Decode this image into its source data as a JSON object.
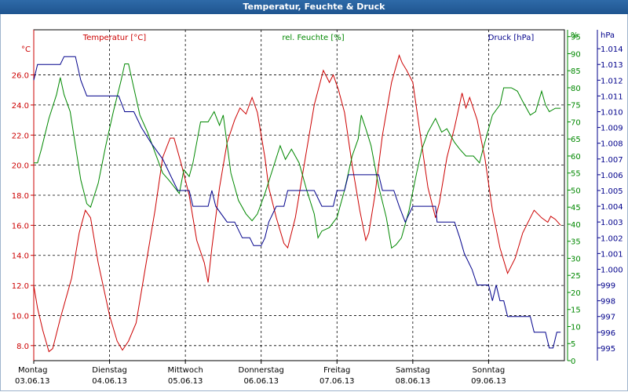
{
  "window": {
    "title": "Temperatur, Feuchte & Druck"
  },
  "chart_data": {
    "type": "line",
    "title": "Temperatur, Feuchte & Druck",
    "x_range": [
      0,
      7
    ],
    "grid": true,
    "axes": {
      "temperature": {
        "unit": "°C",
        "label": "Temperatur [°C]",
        "range": [
          7,
          29
        ],
        "ticks": [
          8,
          10,
          12,
          14,
          16,
          18,
          20,
          22,
          24,
          26
        ],
        "tick_labels": [
          "8.0",
          "10.0",
          "12.0",
          "14.0",
          "16.0",
          "18.0",
          "20.0",
          "22.0",
          "24.0",
          "26.0"
        ],
        "color": "#cc0000"
      },
      "humidity": {
        "unit": "%",
        "label": "rel. Feuchte [%]",
        "range": [
          0,
          97
        ],
        "ticks": [
          0,
          5,
          10,
          15,
          20,
          25,
          30,
          35,
          40,
          45,
          50,
          55,
          60,
          65,
          70,
          75,
          80,
          85,
          90,
          95
        ],
        "tick_labels": [
          "0",
          "5",
          "10",
          "15",
          "20",
          "25",
          "30",
          "35",
          "40",
          "45",
          "50",
          "55",
          "60",
          "65",
          "70",
          "75",
          "80",
          "85",
          "90",
          "95"
        ],
        "color": "#008800"
      },
      "pressure": {
        "unit": "hPa",
        "label": "Druck [hPa]",
        "range": [
          994.2,
          1015.2
        ],
        "ticks": [
          995,
          996,
          997,
          998,
          999,
          1000,
          1001,
          1002,
          1003,
          1004,
          1005,
          1006,
          1007,
          1008,
          1009,
          1010,
          1011,
          1012,
          1013,
          1014
        ],
        "tick_labels": [
          "995",
          "996",
          "997",
          "998",
          "999",
          "1.000",
          "1.001",
          "1.002",
          "1.003",
          "1.004",
          "1.005",
          "1.006",
          "1.007",
          "1.008",
          "1.009",
          "1.010",
          "1.011",
          "1.012",
          "1.013",
          "1.014"
        ],
        "color": "#00008b"
      }
    },
    "days": [
      {
        "name": "Montag",
        "date": "03.06.13"
      },
      {
        "name": "Dienstag",
        "date": "04.06.13"
      },
      {
        "name": "Mittwoch",
        "date": "05.06.13"
      },
      {
        "name": "Donnerstag",
        "date": "06.06.13"
      },
      {
        "name": "Freitag",
        "date": "07.06.13"
      },
      {
        "name": "Samstag",
        "date": "08.06.13"
      },
      {
        "name": "Sonntag",
        "date": "09.06.13"
      }
    ],
    "series": [
      {
        "name": "Temperatur",
        "axis": "temperature",
        "color": "#cc0000",
        "points": [
          [
            0,
            12
          ],
          [
            0.05,
            10.5
          ],
          [
            0.12,
            9
          ],
          [
            0.2,
            7.6
          ],
          [
            0.25,
            7.8
          ],
          [
            0.35,
            9.8
          ],
          [
            0.5,
            12.5
          ],
          [
            0.6,
            15.5
          ],
          [
            0.68,
            17
          ],
          [
            0.75,
            16.5
          ],
          [
            0.85,
            13.5
          ],
          [
            1,
            10
          ],
          [
            1.1,
            8.3
          ],
          [
            1.17,
            7.7
          ],
          [
            1.25,
            8.3
          ],
          [
            1.35,
            9.5
          ],
          [
            1.45,
            12.5
          ],
          [
            1.6,
            17
          ],
          [
            1.7,
            20.5
          ],
          [
            1.8,
            21.8
          ],
          [
            1.85,
            21.8
          ],
          [
            1.95,
            20
          ],
          [
            2.05,
            18
          ],
          [
            2.15,
            15
          ],
          [
            2.25,
            13.5
          ],
          [
            2.3,
            12.2
          ],
          [
            2.35,
            14.5
          ],
          [
            2.45,
            18.5
          ],
          [
            2.55,
            21.5
          ],
          [
            2.65,
            23
          ],
          [
            2.72,
            23.8
          ],
          [
            2.8,
            23.4
          ],
          [
            2.88,
            24.5
          ],
          [
            2.95,
            23.5
          ],
          [
            3.05,
            20.5
          ],
          [
            3.1,
            18.5
          ],
          [
            3.2,
            16.5
          ],
          [
            3.3,
            14.8
          ],
          [
            3.35,
            14.5
          ],
          [
            3.45,
            16.5
          ],
          [
            3.55,
            19.5
          ],
          [
            3.7,
            24
          ],
          [
            3.82,
            26.3
          ],
          [
            3.9,
            25.5
          ],
          [
            3.95,
            26
          ],
          [
            4.02,
            25
          ],
          [
            4.1,
            23.5
          ],
          [
            4.2,
            20
          ],
          [
            4.3,
            17
          ],
          [
            4.38,
            15
          ],
          [
            4.42,
            15.5
          ],
          [
            4.5,
            18
          ],
          [
            4.6,
            22
          ],
          [
            4.72,
            25.5
          ],
          [
            4.82,
            27.3
          ],
          [
            4.86,
            26.8
          ],
          [
            4.92,
            26.3
          ],
          [
            5,
            25.5
          ],
          [
            5.1,
            22
          ],
          [
            5.2,
            18.5
          ],
          [
            5.3,
            16.5
          ],
          [
            5.35,
            17.5
          ],
          [
            5.45,
            20.5
          ],
          [
            5.55,
            22.5
          ],
          [
            5.65,
            24.8
          ],
          [
            5.7,
            23.8
          ],
          [
            5.75,
            24.5
          ],
          [
            5.85,
            23
          ],
          [
            5.95,
            20.5
          ],
          [
            6.05,
            17
          ],
          [
            6.15,
            14.5
          ],
          [
            6.25,
            12.8
          ],
          [
            6.35,
            13.8
          ],
          [
            6.45,
            15.5
          ],
          [
            6.55,
            16.5
          ],
          [
            6.6,
            17
          ],
          [
            6.7,
            16.5
          ],
          [
            6.78,
            16.2
          ],
          [
            6.82,
            16.6
          ],
          [
            6.88,
            16.4
          ],
          [
            6.95,
            16
          ]
        ]
      },
      {
        "name": "rel. Feuchte",
        "axis": "humidity",
        "color": "#008800",
        "points": [
          [
            0,
            58
          ],
          [
            0.05,
            58
          ],
          [
            0.1,
            62
          ],
          [
            0.2,
            71
          ],
          [
            0.3,
            78
          ],
          [
            0.35,
            83
          ],
          [
            0.4,
            78
          ],
          [
            0.48,
            73
          ],
          [
            0.55,
            63
          ],
          [
            0.62,
            53
          ],
          [
            0.7,
            46
          ],
          [
            0.75,
            45
          ],
          [
            0.85,
            52
          ],
          [
            0.95,
            63
          ],
          [
            1.05,
            73
          ],
          [
            1.15,
            82
          ],
          [
            1.2,
            87
          ],
          [
            1.25,
            87
          ],
          [
            1.3,
            82
          ],
          [
            1.4,
            72
          ],
          [
            1.5,
            67
          ],
          [
            1.6,
            61
          ],
          [
            1.7,
            55
          ],
          [
            1.78,
            53
          ],
          [
            1.85,
            51
          ],
          [
            1.92,
            49
          ],
          [
            1.98,
            56
          ],
          [
            2.05,
            54
          ],
          [
            2.1,
            58
          ],
          [
            2.2,
            70
          ],
          [
            2.3,
            70
          ],
          [
            2.38,
            73
          ],
          [
            2.45,
            69
          ],
          [
            2.5,
            72
          ],
          [
            2.6,
            55
          ],
          [
            2.7,
            47
          ],
          [
            2.8,
            43
          ],
          [
            2.88,
            41
          ],
          [
            2.95,
            43
          ],
          [
            3.05,
            49
          ],
          [
            3.15,
            56
          ],
          [
            3.25,
            63
          ],
          [
            3.32,
            59
          ],
          [
            3.4,
            62
          ],
          [
            3.5,
            58
          ],
          [
            3.6,
            50
          ],
          [
            3.7,
            43
          ],
          [
            3.75,
            36
          ],
          [
            3.8,
            38
          ],
          [
            3.9,
            39
          ],
          [
            4,
            42
          ],
          [
            4.1,
            50
          ],
          [
            4.2,
            60
          ],
          [
            4.28,
            65
          ],
          [
            4.32,
            72
          ],
          [
            4.38,
            68
          ],
          [
            4.45,
            63
          ],
          [
            4.55,
            51
          ],
          [
            4.65,
            42
          ],
          [
            4.72,
            33
          ],
          [
            4.78,
            34
          ],
          [
            4.85,
            36
          ],
          [
            4.95,
            44
          ],
          [
            5.05,
            55
          ],
          [
            5.12,
            62
          ],
          [
            5.2,
            67
          ],
          [
            5.3,
            71
          ],
          [
            5.38,
            67
          ],
          [
            5.45,
            68
          ],
          [
            5.55,
            64
          ],
          [
            5.62,
            62
          ],
          [
            5.7,
            60
          ],
          [
            5.8,
            60
          ],
          [
            5.88,
            58
          ],
          [
            5.95,
            64
          ],
          [
            6.05,
            72
          ],
          [
            6.15,
            75
          ],
          [
            6.2,
            80
          ],
          [
            6.3,
            80
          ],
          [
            6.38,
            79
          ],
          [
            6.45,
            76
          ],
          [
            6.55,
            72
          ],
          [
            6.62,
            73
          ],
          [
            6.7,
            79
          ],
          [
            6.75,
            75
          ],
          [
            6.8,
            73
          ],
          [
            6.88,
            74
          ],
          [
            6.95,
            74
          ]
        ]
      },
      {
        "name": "Druck",
        "axis": "pressure",
        "color": "#00008b",
        "points": [
          [
            0,
            1012
          ],
          [
            0.05,
            1013
          ],
          [
            0.35,
            1013
          ],
          [
            0.4,
            1013.5
          ],
          [
            0.55,
            1013.5
          ],
          [
            0.62,
            1012
          ],
          [
            0.7,
            1011
          ],
          [
            1.12,
            1011
          ],
          [
            1.2,
            1010
          ],
          [
            1.32,
            1010
          ],
          [
            1.42,
            1009
          ],
          [
            1.55,
            1008
          ],
          [
            1.7,
            1007
          ],
          [
            1.8,
            1006
          ],
          [
            1.9,
            1005
          ],
          [
            2.05,
            1005
          ],
          [
            2.1,
            1004
          ],
          [
            2.3,
            1004
          ],
          [
            2.35,
            1005
          ],
          [
            2.4,
            1004
          ],
          [
            2.55,
            1003
          ],
          [
            2.65,
            1003
          ],
          [
            2.75,
            1002
          ],
          [
            2.85,
            1002
          ],
          [
            2.9,
            1001.5
          ],
          [
            3,
            1001.5
          ],
          [
            3.05,
            1002
          ],
          [
            3.1,
            1003
          ],
          [
            3.2,
            1004
          ],
          [
            3.3,
            1004
          ],
          [
            3.35,
            1005
          ],
          [
            3.7,
            1005
          ],
          [
            3.8,
            1004
          ],
          [
            3.95,
            1004
          ],
          [
            4,
            1005
          ],
          [
            4.1,
            1005
          ],
          [
            4.15,
            1006
          ],
          [
            4.55,
            1006
          ],
          [
            4.6,
            1005
          ],
          [
            4.75,
            1005
          ],
          [
            4.82,
            1004
          ],
          [
            4.9,
            1003
          ],
          [
            5,
            1004
          ],
          [
            5.3,
            1004
          ],
          [
            5.32,
            1003
          ],
          [
            5.55,
            1003
          ],
          [
            5.62,
            1002
          ],
          [
            5.68,
            1001
          ],
          [
            5.78,
            1000
          ],
          [
            5.85,
            999
          ],
          [
            6,
            999
          ],
          [
            6.05,
            998
          ],
          [
            6.1,
            999
          ],
          [
            6.15,
            998
          ],
          [
            6.2,
            998
          ],
          [
            6.25,
            997
          ],
          [
            6.55,
            997
          ],
          [
            6.6,
            996
          ],
          [
            6.75,
            996
          ],
          [
            6.8,
            995
          ],
          [
            6.85,
            995
          ],
          [
            6.9,
            996
          ],
          [
            6.95,
            996
          ]
        ]
      }
    ]
  }
}
